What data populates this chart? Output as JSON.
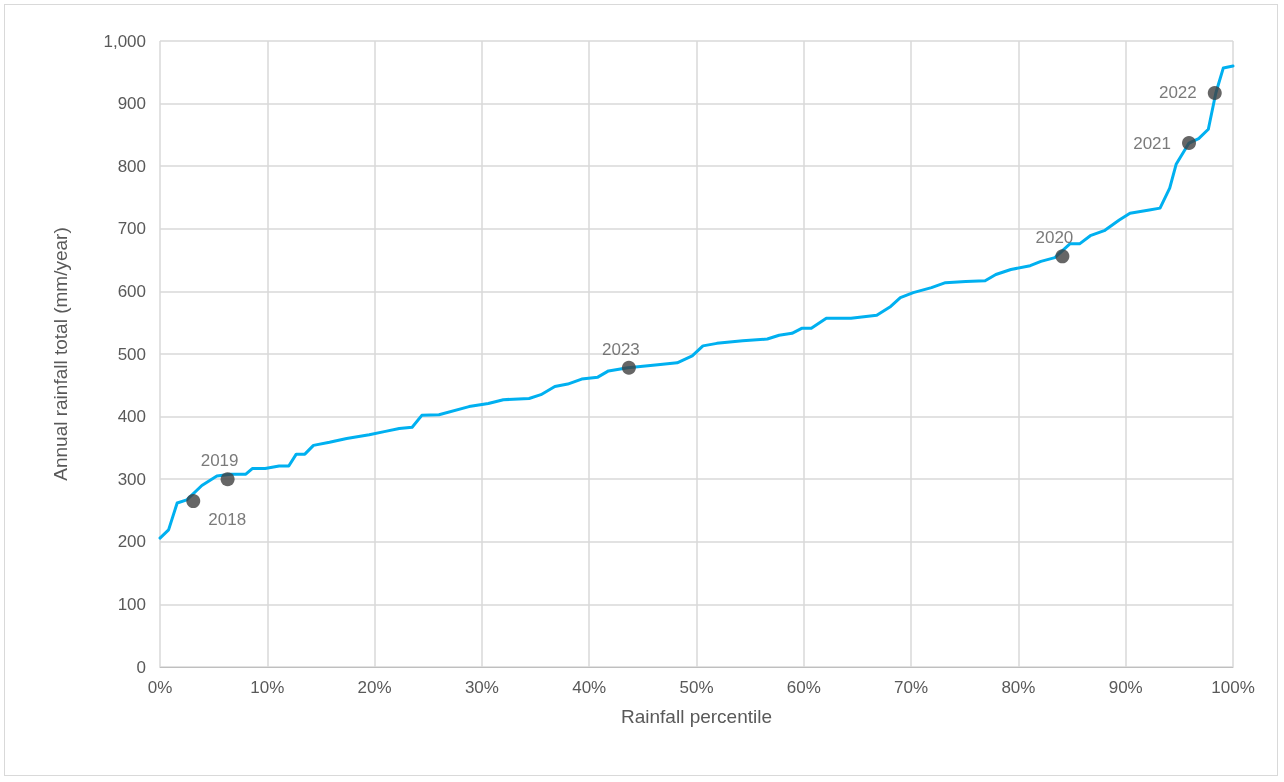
{
  "chart_data": {
    "type": "line",
    "xlabel": "Rainfall percentile",
    "ylabel": "Annual rainfall total (mm/year)",
    "xlim": [
      0,
      100
    ],
    "xticks": [
      {
        "value": 0,
        "label": "0%"
      },
      {
        "value": 10,
        "label": "10%"
      },
      {
        "value": 20,
        "label": "20%"
      },
      {
        "value": 30,
        "label": "30%"
      },
      {
        "value": 40,
        "label": "40%"
      },
      {
        "value": 50,
        "label": "50%"
      },
      {
        "value": 60,
        "label": "60%"
      },
      {
        "value": 70,
        "label": "70%"
      },
      {
        "value": 80,
        "label": "80%"
      },
      {
        "value": 90,
        "label": "90%"
      },
      {
        "value": 100,
        "label": "100%"
      }
    ],
    "ylim": [
      0,
      1000
    ],
    "yticks": [
      0,
      100,
      200,
      300,
      400,
      500,
      600,
      700,
      800,
      900,
      {
        "value": 1000,
        "label": "1,000"
      }
    ],
    "grid": true,
    "series": [
      {
        "color": "#00b0f0",
        "marker": "none",
        "line_style": "solid",
        "x": [
          0,
          0.8,
          1.6,
          2.5,
          3.9,
          5.3,
          6.6,
          8,
          8.6,
          9.8,
          11.1,
          12,
          12.7,
          13.5,
          14.3,
          15.8,
          17.4,
          19.5,
          20.9,
          22.3,
          23.5,
          24.4,
          26,
          28.8,
          30.6,
          32,
          34.4,
          35.5,
          36.8,
          38,
          39.3,
          40.8,
          41.8,
          43.6,
          46.4,
          48.2,
          49.6,
          50.6,
          51.9,
          54.3,
          56.6,
          57.7,
          58.9,
          59.8,
          60.7,
          62.1,
          64.4,
          66.8,
          68.1,
          69,
          70.2,
          71.9,
          73.2,
          75.1,
          76.9,
          77.9,
          79.3,
          81.1,
          82.1,
          83.4,
          84.8,
          85.7,
          86.7,
          88,
          89.4,
          90.4,
          92.2,
          93.2,
          94.1,
          94.7,
          95.9,
          96.8,
          97.7,
          98.4,
          99.1,
          100
        ],
        "values": [
          206,
          219,
          262,
          267,
          290,
          305,
          308,
          308,
          317,
          317,
          321,
          321,
          340,
          340,
          354,
          359,
          365,
          371,
          376,
          381,
          383,
          402,
          403,
          416,
          421,
          427,
          429,
          435,
          448,
          452,
          460,
          463,
          473,
          478,
          483,
          486,
          497,
          513,
          517,
          521,
          524,
          530,
          533,
          541,
          541,
          557,
          557,
          562,
          576,
          590,
          598,
          606,
          614,
          616,
          617,
          627,
          635,
          641,
          648,
          654,
          676,
          676,
          689,
          697,
          714,
          725,
          730,
          733,
          765,
          803,
          837,
          844,
          859,
          917,
          957,
          960
        ]
      },
      {
        "type": "scatter",
        "color": "#404040",
        "marker": "circle",
        "x": [
          3.1,
          6.3,
          84.1,
          95.9,
          98.3,
          43.7
        ],
        "values": [
          265,
          300,
          656,
          837,
          917,
          478
        ]
      }
    ],
    "annotations": [
      {
        "text": "2018",
        "x": 3.1,
        "y": 265
      },
      {
        "text": "2019",
        "x": 6.3,
        "y": 300
      },
      {
        "text": "2020",
        "x": 84.1,
        "y": 656
      },
      {
        "text": "2021",
        "x": 95.9,
        "y": 837
      },
      {
        "text": "2022",
        "x": 98.3,
        "y": 917
      },
      {
        "text": "2023",
        "x": 43.7,
        "y": 478
      }
    ]
  }
}
